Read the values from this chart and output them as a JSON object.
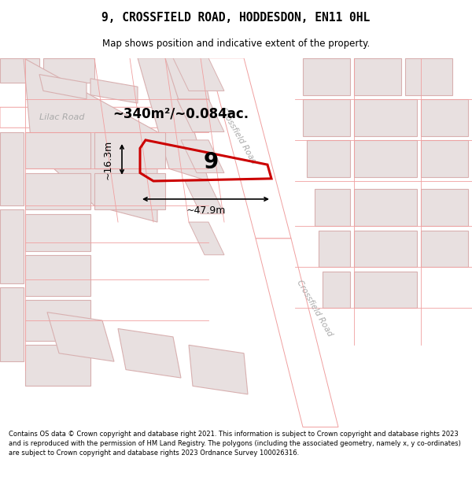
{
  "title": "9, CROSSFIELD ROAD, HODDESDON, EN11 0HL",
  "subtitle": "Map shows position and indicative extent of the property.",
  "footer": "Contains OS data © Crown copyright and database right 2021. This information is subject to Crown copyright and database rights 2023 and is reproduced with the permission of HM Land Registry. The polygons (including the associated geometry, namely x, y co-ordinates) are subject to Crown copyright and database rights 2023 Ordnance Survey 100026316.",
  "map_bg": "#f5f2f2",
  "road_color": "#f0a0a0",
  "building_fill": "#e8e0e0",
  "building_outline": "#d8b0b0",
  "highlight_outline": "#cc0000",
  "area_text": "~340m²/~0.084ac.",
  "width_text": "~47.9m",
  "height_text": "~16.3m",
  "number_text": "9",
  "road_label": "Crossfield Road",
  "lilac_label": "Lilac Road"
}
